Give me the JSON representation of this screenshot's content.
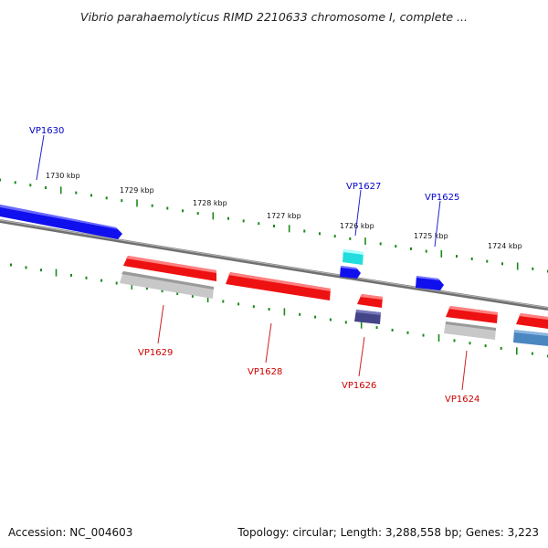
{
  "title": "Vibrio parahaemolyticus RIMD 2210633 chromosome I, complete ...",
  "footer": {
    "accession": "Accession: NC_004603",
    "stats": "Topology: circular; Length: 3,288,558 bp; Genes: 3,223"
  },
  "ruler_labels": [
    "1730 kbp",
    "1729 kbp",
    "1728 kbp",
    "1727 kbp",
    "1726 kbp",
    "1725 kbp",
    "1724 kbp"
  ],
  "gene_labels_top": [
    "VP1630",
    "VP1627",
    "VP1625"
  ],
  "gene_labels_bottom": [
    "VP1629",
    "VP1628",
    "VP1626",
    "VP1624"
  ],
  "colors": {
    "backbone": "#808080",
    "tick": "#1a8a1a",
    "label_top": "#0000cc",
    "label_bottom": "#cc0000",
    "feature_blue": "#1010ee",
    "feature_red": "#ee1111",
    "feature_gray": "#c8c8c8",
    "feature_cyan": "#22dddd",
    "feature_purple": "#444488",
    "feature_steel": "#4a86c0"
  }
}
